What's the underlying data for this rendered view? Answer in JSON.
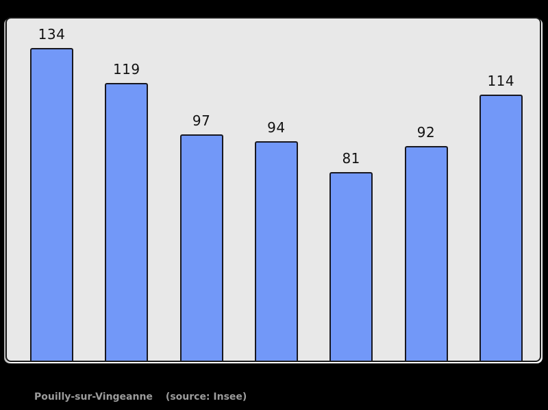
{
  "page": {
    "background": "#000000"
  },
  "chart_data": {
    "type": "bar",
    "values": [
      134,
      119,
      97,
      94,
      81,
      92,
      114
    ],
    "value_labels": [
      "134",
      "119",
      "97",
      "94",
      "81",
      "92",
      "114"
    ],
    "title": "",
    "xlabel": "",
    "ylabel": "",
    "ylim": [
      0,
      147
    ],
    "grid": false,
    "legend": false,
    "axes_shown": false,
    "bar_fill_color": "#7298f8",
    "bar_border_color": "#17171f",
    "panel_background": "#e8e8e8",
    "panel_border_color": "#1a1a1a",
    "value_label_color": "#111111"
  },
  "caption": {
    "title": "Pouilly-sur-Vingeanne",
    "source": "(source: Insee)",
    "color": "#9c9c9c"
  }
}
